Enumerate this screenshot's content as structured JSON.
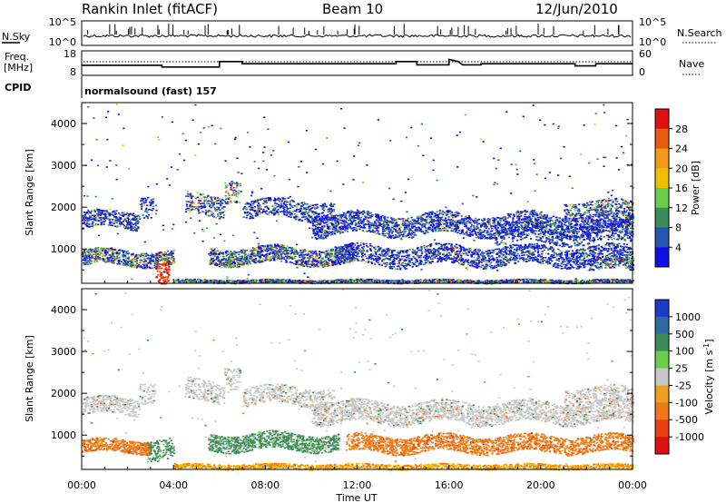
{
  "header": {
    "station": "Rankin Inlet (fitACF)",
    "beam": "Beam 10",
    "date": "12/Jun/2010"
  },
  "noise_panel": {
    "left_label": "N.Sky",
    "right_label": "N.Search",
    "left_ticks": [
      "10^5",
      "10^0"
    ],
    "right_ticks": [
      "10^5",
      "10^0"
    ]
  },
  "freq_panel": {
    "left_label_1": "Freq.",
    "left_label_2": "[MHz]",
    "right_label": "Nave",
    "left_ticks": [
      "18",
      "8"
    ],
    "right_ticks": [
      "60",
      "0"
    ]
  },
  "cpid": {
    "label": "CPID",
    "mode": "normalsound (fast) 157"
  },
  "chart_data": [
    {
      "type": "heatmap",
      "name": "power",
      "ylabel": "Slant Range [km]",
      "xlabel": "",
      "yticks": [
        "1000",
        "2000",
        "3000",
        "4000"
      ],
      "ylim": [
        180,
        4500
      ],
      "colorbar_label": "Power [dB]",
      "colorbar_ticks": [
        "4",
        "8",
        "12",
        "16",
        "20",
        "24",
        "28"
      ],
      "colorbar_colors": [
        "#1010e6",
        "#2456b0",
        "#3c8c5a",
        "#6acd4c",
        "#f0c000",
        "#f39a1c",
        "#e85c10",
        "#e01010"
      ]
    },
    {
      "type": "heatmap",
      "name": "velocity",
      "ylabel": "Slant Range [km]",
      "xlabel": "Time UT",
      "yticks": [
        "1000",
        "2000",
        "3000",
        "4000"
      ],
      "ylim": [
        180,
        4500
      ],
      "colorbar_label": "Velocity [m s^-1]",
      "colorbar_ticks": [
        "1000",
        "500",
        "100",
        "25",
        "-25",
        "-100",
        "-500",
        "-1000"
      ],
      "colorbar_colors": [
        "#1a3cc8",
        "#2f6aa0",
        "#3c8c5a",
        "#6acd4c",
        "#c8c8c8",
        "#f0a020",
        "#f07818",
        "#e84010",
        "#e01010"
      ]
    }
  ],
  "x_axis": {
    "labels": [
      "00:00",
      "04:00",
      "08:00",
      "12:00",
      "16:00",
      "20:00",
      "00:00"
    ],
    "title": "Time UT"
  },
  "colors": {
    "power_scatter": [
      "#1010e6",
      "#2456b0",
      "#3c8c5a",
      "#6acd4c",
      "#f0c000",
      "#e85c10",
      "#e01010"
    ],
    "velocity_gs": "#c8c8c8",
    "velocity_pos": "#3c8c5a",
    "velocity_neg": "#f07818"
  }
}
